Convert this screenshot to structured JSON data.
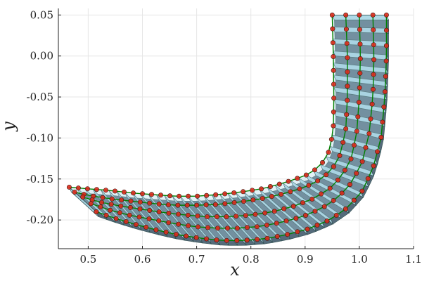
{
  "chart_data": {
    "type": "line",
    "title": "",
    "xlabel": "x",
    "ylabel": "y",
    "xlim": [
      0.445,
      1.1
    ],
    "ylim": [
      -0.235,
      0.058
    ],
    "xticks": [
      0.5,
      0.6,
      0.7,
      0.8,
      0.9,
      1.0,
      1.1
    ],
    "xtick_labels": [
      "0.5",
      "0.6",
      "0.7",
      "0.8",
      "0.9",
      "1.0",
      "1.1"
    ],
    "yticks": [
      0.05,
      0.0,
      -0.05,
      -0.1,
      -0.15,
      -0.2
    ],
    "ytick_labels": [
      "0.05",
      "0.00",
      "-0.05",
      "-0.10",
      "-0.15",
      "-0.20"
    ],
    "grid": true,
    "legend": "none",
    "colors": {
      "band_fill": "#add8e6",
      "band_edge": "#2f4f4f",
      "shadow_fill": "#556b7b",
      "node_line": "#008000",
      "node_marker": "#dc2a1c",
      "node_marker_edge": "#3a1a10"
    },
    "series": [
      {
        "points": [
          [
            0.95,
            0.05
          ],
          [
            0.952,
            0.0
          ],
          [
            0.953,
            -0.05
          ],
          [
            0.952,
            -0.09
          ],
          [
            0.945,
            -0.115
          ],
          [
            0.935,
            -0.128
          ],
          [
            0.92,
            -0.138
          ],
          [
            0.9,
            -0.146
          ],
          [
            0.86,
            -0.155
          ],
          [
            0.82,
            -0.162
          ],
          [
            0.78,
            -0.166
          ],
          [
            0.74,
            -0.169
          ],
          [
            0.7,
            -0.171
          ],
          [
            0.66,
            -0.171
          ],
          [
            0.62,
            -0.169
          ],
          [
            0.58,
            -0.167
          ],
          [
            0.54,
            -0.164
          ],
          [
            0.5,
            -0.162
          ],
          [
            0.465,
            -0.16
          ]
        ]
      },
      {
        "points": [
          [
            0.975,
            0.05
          ],
          [
            0.978,
            0.0
          ],
          [
            0.978,
            -0.05
          ],
          [
            0.975,
            -0.09
          ],
          [
            0.965,
            -0.12
          ],
          [
            0.95,
            -0.138
          ],
          [
            0.93,
            -0.15
          ],
          [
            0.9,
            -0.16
          ],
          [
            0.86,
            -0.168
          ],
          [
            0.82,
            -0.174
          ],
          [
            0.78,
            -0.178
          ],
          [
            0.74,
            -0.181
          ],
          [
            0.7,
            -0.182
          ],
          [
            0.66,
            -0.182
          ],
          [
            0.62,
            -0.18
          ],
          [
            0.58,
            -0.177
          ],
          [
            0.54,
            -0.174
          ],
          [
            0.5,
            -0.17
          ],
          [
            0.475,
            -0.166
          ]
        ]
      },
      {
        "points": [
          [
            1.0,
            0.05
          ],
          [
            1.002,
            0.0
          ],
          [
            1.0,
            -0.05
          ],
          [
            0.995,
            -0.095
          ],
          [
            0.985,
            -0.125
          ],
          [
            0.968,
            -0.146
          ],
          [
            0.945,
            -0.162
          ],
          [
            0.915,
            -0.174
          ],
          [
            0.88,
            -0.183
          ],
          [
            0.84,
            -0.19
          ],
          [
            0.8,
            -0.194
          ],
          [
            0.76,
            -0.196
          ],
          [
            0.72,
            -0.196
          ],
          [
            0.68,
            -0.194
          ],
          [
            0.64,
            -0.191
          ],
          [
            0.6,
            -0.187
          ],
          [
            0.56,
            -0.183
          ],
          [
            0.52,
            -0.178
          ],
          [
            0.49,
            -0.172
          ]
        ]
      },
      {
        "points": [
          [
            1.025,
            0.05
          ],
          [
            1.027,
            0.0
          ],
          [
            1.025,
            -0.05
          ],
          [
            1.018,
            -0.095
          ],
          [
            1.005,
            -0.13
          ],
          [
            0.985,
            -0.155
          ],
          [
            0.96,
            -0.173
          ],
          [
            0.93,
            -0.186
          ],
          [
            0.895,
            -0.196
          ],
          [
            0.855,
            -0.203
          ],
          [
            0.815,
            -0.208
          ],
          [
            0.775,
            -0.21
          ],
          [
            0.735,
            -0.21
          ],
          [
            0.695,
            -0.208
          ],
          [
            0.655,
            -0.204
          ],
          [
            0.615,
            -0.199
          ],
          [
            0.575,
            -0.194
          ],
          [
            0.54,
            -0.188
          ],
          [
            0.505,
            -0.18
          ]
        ]
      },
      {
        "points": [
          [
            1.05,
            0.05
          ],
          [
            1.05,
            0.0
          ],
          [
            1.047,
            -0.05
          ],
          [
            1.04,
            -0.1
          ],
          [
            1.025,
            -0.137
          ],
          [
            1.005,
            -0.165
          ],
          [
            0.978,
            -0.185
          ],
          [
            0.945,
            -0.2
          ],
          [
            0.905,
            -0.211
          ],
          [
            0.865,
            -0.218
          ],
          [
            0.825,
            -0.223
          ],
          [
            0.785,
            -0.225
          ],
          [
            0.745,
            -0.225
          ],
          [
            0.705,
            -0.222
          ],
          [
            0.665,
            -0.218
          ],
          [
            0.625,
            -0.212
          ],
          [
            0.585,
            -0.205
          ],
          [
            0.55,
            -0.198
          ],
          [
            0.515,
            -0.19
          ]
        ]
      }
    ]
  }
}
